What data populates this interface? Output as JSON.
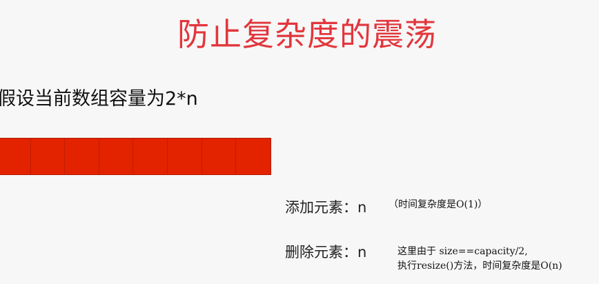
{
  "title": "防止复杂度的震荡",
  "assumption": "假设当前数组容量为2*n",
  "array": {
    "cell_count": 8,
    "fill_color": "#e32200"
  },
  "operations": {
    "add_label": "添加元素：n",
    "add_note": "（时间复杂度是O(1)）",
    "remove_label": "删除元素：n",
    "remove_note_line1": "这里由于 size==capacity/2,",
    "remove_note_line2": "执行resize()方法，时间复杂度是O(n)"
  },
  "colors": {
    "title": "#e2363c",
    "array": "#e32200",
    "background": "#f7f7f7"
  }
}
